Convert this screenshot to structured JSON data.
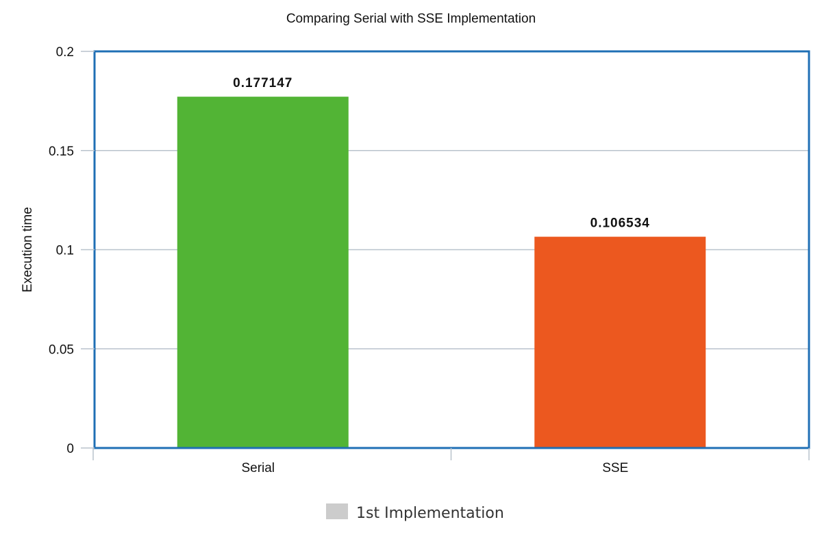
{
  "chart_data": {
    "type": "bar",
    "title": "Comparing Serial with SSE Implementation",
    "xlabel": "",
    "ylabel": "Execution time",
    "categories": [
      "Serial",
      "SSE"
    ],
    "series": [
      {
        "name": "1st Implementation",
        "values": [
          0.177147,
          0.106534
        ],
        "value_labels": [
          "0.177147",
          "0.106534"
        ],
        "colors": [
          "#52b435",
          "#ec581f"
        ]
      }
    ],
    "ylim": [
      0,
      0.2
    ],
    "yticks": [
      0,
      0.05,
      0.1,
      0.15,
      0.2
    ],
    "ytick_labels": [
      "0",
      "0.05",
      "0.1",
      "0.15",
      "0.2"
    ],
    "grid": true,
    "legend_position": "bottom-center",
    "legend_swatch_color": "#cccccc",
    "frame_color": "#1f6fb5",
    "gridline_color": "#b8c2cc"
  }
}
